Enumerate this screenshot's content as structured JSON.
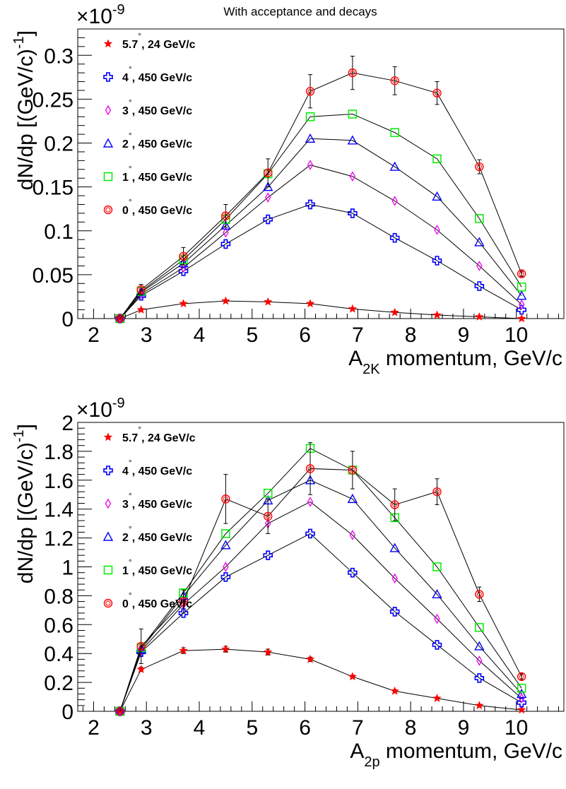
{
  "figure": {
    "title": "With acceptance and decays"
  },
  "chart_data": [
    {
      "type": "scatter",
      "title": "With acceptance and decays",
      "xlabel_main": "A",
      "xlabel_sub": "2K",
      "xlabel_rest": " momentum, GeV/c",
      "ylabel_main": "dN/dp [(GeV/c)",
      "ylabel_sup": "-1",
      "ylabel_end": "]",
      "scale_base": "×10",
      "scale_exp": "-9",
      "xlim": [
        1.7,
        10.9
      ],
      "ylim": [
        0,
        0.33
      ],
      "xticks": [
        2,
        3,
        4,
        5,
        6,
        7,
        8,
        9,
        10
      ],
      "yticks": [
        0,
        0.05,
        0.1,
        0.15,
        0.2,
        0.25,
        0.3
      ],
      "ytick_labels": [
        "0",
        "0.05",
        "0.1",
        "0.15",
        "0.2",
        "0.25",
        "0.3"
      ],
      "x": [
        2.5,
        2.9,
        3.7,
        4.5,
        5.3,
        6.1,
        6.9,
        7.7,
        8.5,
        9.3,
        10.1
      ],
      "legend_position": "top-left",
      "series": [
        {
          "name": "5.7°, 24 GeV/c",
          "label_main": "5.7",
          "label_rest": ", 24 GeV/c",
          "marker": "star",
          "color": "#ff0000",
          "values": [
            0,
            0.01,
            0.017,
            0.02,
            0.019,
            0.017,
            0.011,
            0.007,
            0.004,
            0.002,
            0.0
          ]
        },
        {
          "name": "4°, 450 GeV/c",
          "label_main": "4",
          "label_rest": ", 450 GeV/c",
          "marker": "cross",
          "color": "#0000ff",
          "values": [
            0,
            0.026,
            0.054,
            0.085,
            0.113,
            0.13,
            0.12,
            0.092,
            0.066,
            0.037,
            0.01
          ]
        },
        {
          "name": "3°, 450 GeV/c",
          "label_main": "3",
          "label_rest": ", 450 GeV/c",
          "marker": "diamond",
          "color": "#ee00ee",
          "values": [
            0,
            0.028,
            0.058,
            0.098,
            0.138,
            0.175,
            0.162,
            0.134,
            0.101,
            0.06,
            0.016
          ]
        },
        {
          "name": "2°, 450 GeV/c",
          "label_main": "2",
          "label_rest": ", 450 GeV/c",
          "marker": "triangle",
          "color": "#0000ff",
          "values": [
            0,
            0.03,
            0.063,
            0.106,
            0.15,
            0.205,
            0.203,
            0.173,
            0.139,
            0.087,
            0.026
          ]
        },
        {
          "name": "1°, 450 GeV/c",
          "label_main": "1",
          "label_rest": ", 450 GeV/c",
          "marker": "square",
          "color": "#00ee00",
          "values": [
            0,
            0.031,
            0.067,
            0.113,
            0.165,
            0.23,
            0.233,
            0.212,
            0.182,
            0.114,
            0.036
          ]
        },
        {
          "name": "0°, 450 GeV/c",
          "label_main": "0",
          "label_rest": ", 450 GeV/c",
          "marker": "circle",
          "color": "#ff0000",
          "values": [
            0,
            0.033,
            0.071,
            0.117,
            0.166,
            0.259,
            0.28,
            0.271,
            0.257,
            0.173,
            0.051
          ],
          "errors": [
            0,
            0.006,
            0.01,
            0.013,
            0.016,
            0.019,
            0.019,
            0.016,
            0.013,
            0.008,
            0.003
          ]
        }
      ]
    },
    {
      "type": "scatter",
      "title": "",
      "xlabel_main": "A",
      "xlabel_sub": "2p",
      "xlabel_rest": " momentum, GeV/c",
      "ylabel_main": "dN/dp [(GeV/c)",
      "ylabel_sup": "-1",
      "ylabel_end": "]",
      "scale_base": "×10",
      "scale_exp": "-9",
      "xlim": [
        1.7,
        10.9
      ],
      "ylim": [
        0,
        2.0
      ],
      "xticks": [
        2,
        3,
        4,
        5,
        6,
        7,
        8,
        9,
        10
      ],
      "yticks": [
        0,
        0.2,
        0.4,
        0.6,
        0.8,
        1.0,
        1.2,
        1.4,
        1.6,
        1.8,
        2.0
      ],
      "ytick_labels": [
        "0",
        "0.2",
        "0.4",
        "0.6",
        "0.8",
        "1",
        "1.2",
        "1.4",
        "1.6",
        "1.8",
        "2"
      ],
      "x": [
        2.5,
        2.9,
        3.7,
        4.5,
        5.3,
        6.1,
        6.9,
        7.7,
        8.5,
        9.3,
        10.1
      ],
      "legend_position": "top-left",
      "series": [
        {
          "name": "5.7°, 24 GeV/c",
          "label_main": "5.7",
          "label_rest": ", 24 GeV/c",
          "marker": "star",
          "color": "#ff0000",
          "values": [
            0,
            0.29,
            0.42,
            0.43,
            0.41,
            0.36,
            0.24,
            0.14,
            0.09,
            0.04,
            0.01
          ],
          "errors": [
            0,
            0.015,
            0.02,
            0.02,
            0.02,
            0.015,
            0.01,
            0.01,
            0.005,
            0.005,
            0.002
          ]
        },
        {
          "name": "4°, 450 GeV/c",
          "label_main": "4",
          "label_rest": ", 450 GeV/c",
          "marker": "cross",
          "color": "#0000ff",
          "values": [
            0,
            0.41,
            0.68,
            0.93,
            1.08,
            1.23,
            0.96,
            0.69,
            0.46,
            0.23,
            0.06
          ]
        },
        {
          "name": "3°, 450 GeV/c",
          "label_main": "3",
          "label_rest": ", 450 GeV/c",
          "marker": "diamond",
          "color": "#ee00ee",
          "values": [
            0,
            0.42,
            0.74,
            1.0,
            1.3,
            1.45,
            1.22,
            0.92,
            0.64,
            0.35,
            0.09
          ]
        },
        {
          "name": "2°, 450 GeV/c",
          "label_main": "2",
          "label_rest": ", 450 GeV/c",
          "marker": "triangle",
          "color": "#0000ff",
          "values": [
            0,
            0.43,
            0.8,
            1.15,
            1.46,
            1.6,
            1.47,
            1.13,
            0.81,
            0.45,
            0.12
          ]
        },
        {
          "name": "1°, 450 GeV/c",
          "label_main": "1",
          "label_rest": ", 450 GeV/c",
          "marker": "square",
          "color": "#00ee00",
          "values": [
            0,
            0.44,
            0.82,
            1.23,
            1.51,
            1.82,
            1.67,
            1.34,
            1.0,
            0.58,
            0.16
          ]
        },
        {
          "name": "0°, 450 GeV/c",
          "label_main": "0",
          "label_rest": ", 450 GeV/c",
          "marker": "circle",
          "color": "#ff0000",
          "values": [
            0,
            0.45,
            0.76,
            1.47,
            1.35,
            1.68,
            1.67,
            1.43,
            1.52,
            0.81,
            0.24
          ],
          "errors": [
            0,
            0.12,
            0.08,
            0.17,
            0.12,
            0.18,
            0.13,
            0.11,
            0.09,
            0.05,
            0.02
          ]
        }
      ]
    }
  ]
}
